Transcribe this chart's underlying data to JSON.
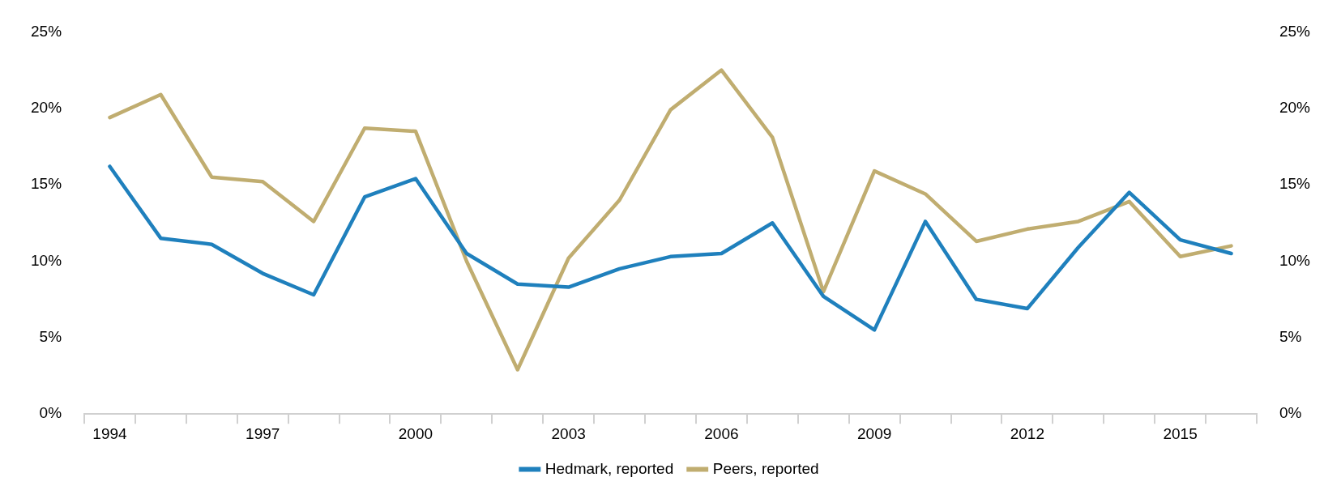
{
  "chart_data": {
    "type": "line",
    "categories": [
      "1994",
      null,
      null,
      "1997",
      null,
      null,
      "2000",
      null,
      null,
      "2003",
      null,
      null,
      "2006",
      null,
      null,
      "2009",
      null,
      null,
      "2012",
      null,
      null,
      "2015",
      null
    ],
    "series": [
      {
        "name": "Hedmark, reported",
        "color": "#1f80bd",
        "values": [
          16.2,
          11.5,
          11.1,
          9.2,
          7.8,
          14.2,
          15.4,
          10.5,
          8.5,
          8.3,
          9.5,
          10.3,
          10.5,
          12.5,
          7.7,
          5.5,
          12.6,
          7.5,
          6.9,
          10.9,
          14.5,
          11.4,
          10.5
        ]
      },
      {
        "name": "Peers, reported",
        "color": "#c0ad70",
        "values": [
          19.4,
          20.9,
          15.5,
          15.2,
          12.6,
          18.7,
          18.5,
          10.0,
          2.9,
          10.2,
          14.0,
          19.9,
          22.5,
          18.1,
          8.0,
          15.9,
          14.4,
          11.3,
          12.1,
          12.6,
          13.9,
          10.3,
          11.0
        ]
      }
    ],
    "ylim": [
      0,
      25
    ],
    "yticks": [
      {
        "value": 0,
        "label": "0%"
      },
      {
        "value": 5,
        "label": "5%"
      },
      {
        "value": 10,
        "label": "10%"
      },
      {
        "value": 15,
        "label": "15%"
      },
      {
        "value": 20,
        "label": "20%"
      },
      {
        "value": 25,
        "label": "25%"
      }
    ],
    "y2lim": [
      0,
      25
    ],
    "y2ticks": [
      {
        "value": 0,
        "label": "0%"
      },
      {
        "value": 5,
        "label": "5%"
      },
      {
        "value": 10,
        "label": "10%"
      },
      {
        "value": 15,
        "label": "15%"
      },
      {
        "value": 20,
        "label": "20%"
      },
      {
        "value": 25,
        "label": "25%"
      }
    ],
    "grid": false,
    "legend": "bottom",
    "marker": "none",
    "line_style": "solid"
  }
}
